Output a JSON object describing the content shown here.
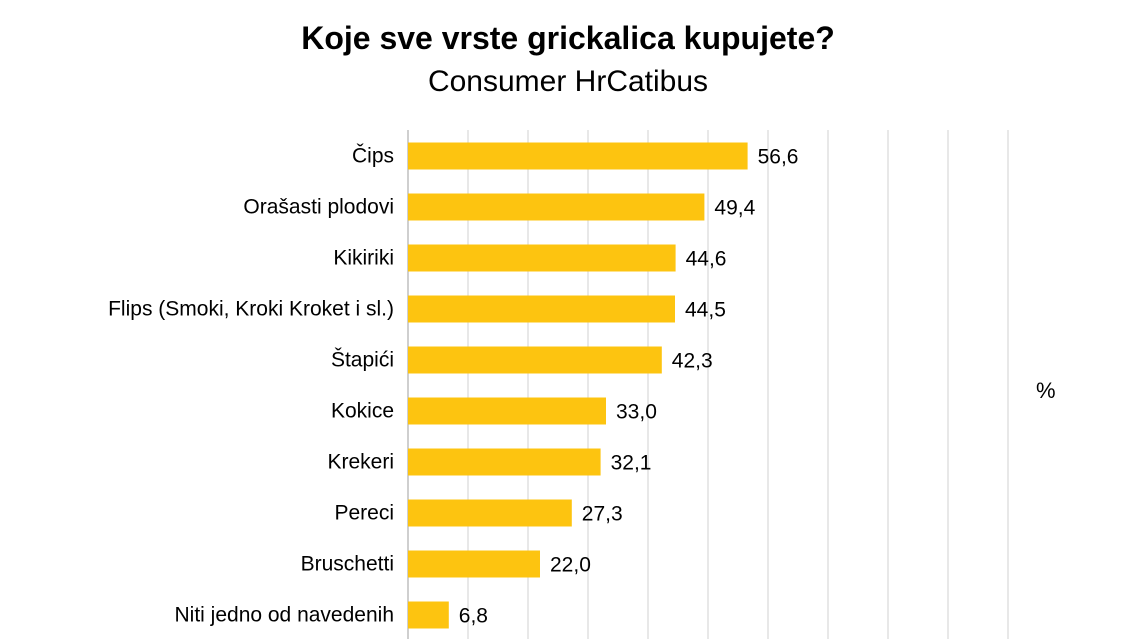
{
  "title": "Koje sve vrste grickalica kupujete?",
  "subtitle": "Consumer HrCatibus",
  "unit_label": "%",
  "colors": {
    "bar": "#FDC410",
    "grid": "#D9D9D9",
    "axis": "#BFBFBF",
    "text": "#000000"
  },
  "chart_data": {
    "type": "bar",
    "orientation": "horizontal",
    "title": "Koje sve vrste grickalica kupujete?",
    "subtitle": "Consumer HrCatibus",
    "categories": [
      "Čips",
      "Orašasti plodovi",
      "Kikiriki",
      "Flips (Smoki, Kroki Kroket i sl.)",
      "Štapići",
      "Kokice",
      "Krekeri",
      "Pereci",
      "Bruschetti",
      "Niti jedno od navedenih"
    ],
    "values": [
      56.6,
      49.4,
      44.6,
      44.5,
      42.3,
      33.0,
      32.1,
      27.3,
      22.0,
      6.8
    ],
    "value_labels": [
      "56,6",
      "49,4",
      "44,6",
      "44,5",
      "42,3",
      "33,0",
      "32,1",
      "27,3",
      "22,0",
      "6,8"
    ],
    "xlim": [
      0,
      100
    ],
    "grid": true,
    "unit": "%"
  }
}
